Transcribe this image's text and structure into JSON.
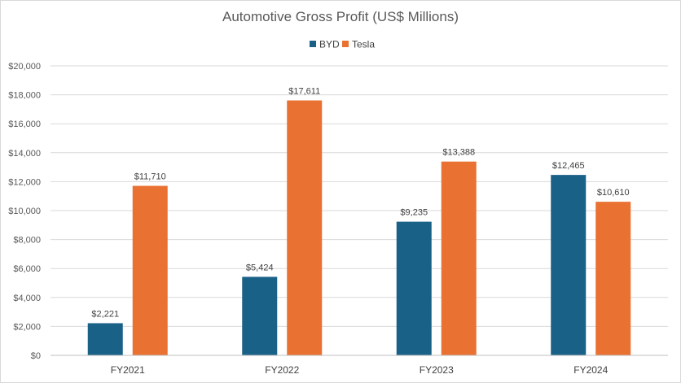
{
  "chart_data": {
    "type": "bar",
    "title": "Automotive Gross Profit (US$ Millions)",
    "xlabel": "",
    "ylabel": "",
    "categories": [
      "FY2021",
      "FY2022",
      "FY2023",
      "FY2024"
    ],
    "series": [
      {
        "name": "BYD",
        "values": [
          2221,
          5424,
          9235,
          12465
        ],
        "color": "#1a6187",
        "labels": [
          "$2,221",
          "$5,424",
          "$9,235",
          "$12,465"
        ]
      },
      {
        "name": "Tesla",
        "values": [
          11710,
          17611,
          13388,
          10610
        ],
        "color": "#e97132",
        "labels": [
          "$11,710",
          "$17,611",
          "$13,388",
          "$10,610"
        ]
      }
    ],
    "ylim": [
      0,
      20000
    ],
    "yticks": [
      0,
      2000,
      4000,
      6000,
      8000,
      10000,
      12000,
      14000,
      16000,
      18000,
      20000
    ],
    "ytick_labels": [
      "$0",
      "$2,000",
      "$4,000",
      "$6,000",
      "$8,000",
      "$10,000",
      "$12,000",
      "$14,000",
      "$16,000",
      "$18,000",
      "$20,000"
    ],
    "grid": true,
    "legend_position": "top-center",
    "grid_color": "#d9d9d9",
    "axis_color": "#bfbfbf"
  }
}
